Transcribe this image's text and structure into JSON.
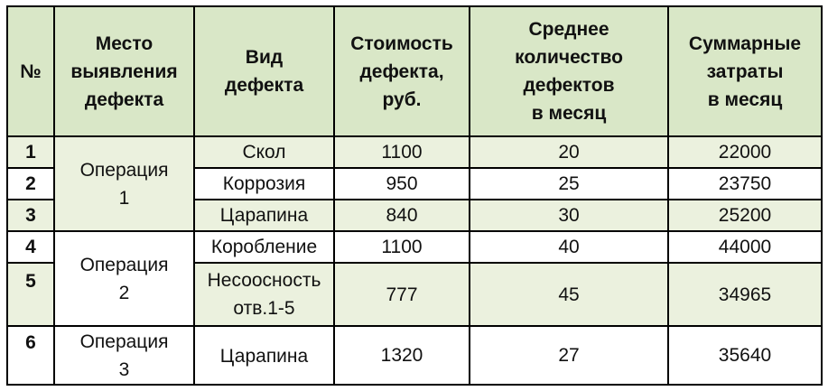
{
  "table": {
    "headers": [
      [
        "№"
      ],
      [
        "Место",
        "выявления",
        "дефекта"
      ],
      [
        "Вид",
        "дефекта"
      ],
      [
        "Стоимость",
        "дефекта,",
        "руб."
      ],
      [
        "Среднее",
        "количество",
        "дефектов",
        "в месяц"
      ],
      [
        "Суммарные",
        "затраты",
        "в месяц"
      ]
    ],
    "groups": [
      {
        "place": [
          "Операция",
          "1"
        ]
      },
      {
        "place": [
          "Операция",
          "2"
        ]
      },
      {
        "place": [
          "Операция",
          "3"
        ]
      }
    ],
    "rows": [
      {
        "num": "1",
        "defect": [
          "Скол"
        ],
        "cost": "1100",
        "avg_count": "20",
        "total": "22000"
      },
      {
        "num": "2",
        "defect": [
          "Коррозия"
        ],
        "cost": "950",
        "avg_count": "25",
        "total": "23750"
      },
      {
        "num": "3",
        "defect": [
          "Царапина"
        ],
        "cost": "840",
        "avg_count": "30",
        "total": "25200"
      },
      {
        "num": "4",
        "defect": [
          "Коробление"
        ],
        "cost": "1100",
        "avg_count": "40",
        "total": "44000"
      },
      {
        "num": "5",
        "defect": [
          "Несоосность",
          "отв.1-5"
        ],
        "cost": "777",
        "avg_count": "45",
        "total": "34965"
      },
      {
        "num": "6",
        "defect": [
          "Царапина"
        ],
        "cost": "1320",
        "avg_count": "27",
        "total": "35640"
      }
    ],
    "colors": {
      "header_bg": "#d9e7c7",
      "row_bg_green": "#ebf1de",
      "row_bg_white": "#ffffff",
      "border": "#000000"
    }
  }
}
